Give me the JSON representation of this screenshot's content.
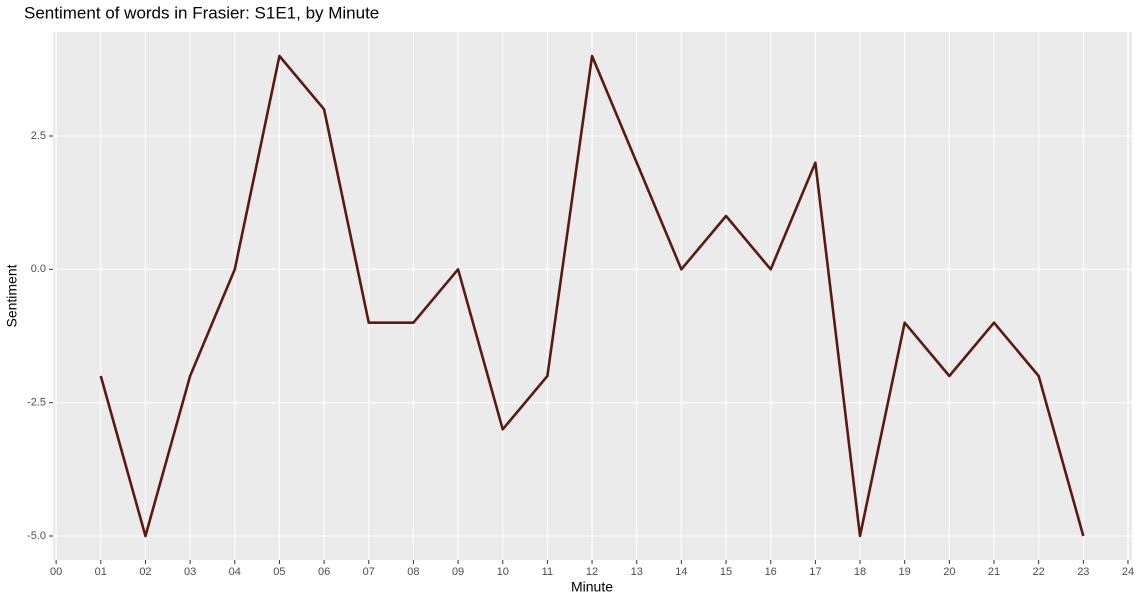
{
  "chart_data": {
    "type": "line",
    "title": "Sentiment of words in Frasier: S1E1, by Minute",
    "x_label": "Minute",
    "y_label": "Sentiment",
    "x": [
      1,
      2,
      3,
      4,
      5,
      6,
      7,
      8,
      9,
      10,
      11,
      12,
      13,
      14,
      15,
      16,
      17,
      18,
      19,
      20,
      21,
      22,
      23
    ],
    "series": [
      {
        "name": "Sentiment",
        "color": "#5a1a10",
        "values": [
          -2,
          -5,
          -2,
          0,
          4,
          3,
          -1,
          -1,
          0,
          -3,
          -2,
          4,
          2,
          0,
          1,
          0,
          2,
          -5,
          -1,
          -2,
          -1,
          -2,
          -5
        ]
      }
    ],
    "xlim": [
      -0.07,
      24.09
    ],
    "xticks": [
      {
        "value": 0,
        "label": "00"
      },
      {
        "value": 1,
        "label": "01"
      },
      {
        "value": 2,
        "label": "02"
      },
      {
        "value": 3,
        "label": "03"
      },
      {
        "value": 4,
        "label": "04"
      },
      {
        "value": 5,
        "label": "05"
      },
      {
        "value": 6,
        "label": "06"
      },
      {
        "value": 7,
        "label": "07"
      },
      {
        "value": 8,
        "label": "08"
      },
      {
        "value": 9,
        "label": "09"
      },
      10,
      11,
      12,
      13,
      14,
      15,
      16,
      17,
      18,
      19,
      20,
      21,
      22,
      23,
      24
    ],
    "ylim": [
      -5.45,
      4.45
    ],
    "yticks": [
      {
        "value": -5,
        "label": "-5.0"
      },
      -2.5,
      {
        "value": 0,
        "label": "0.0"
      },
      2.5
    ],
    "grid": true
  }
}
